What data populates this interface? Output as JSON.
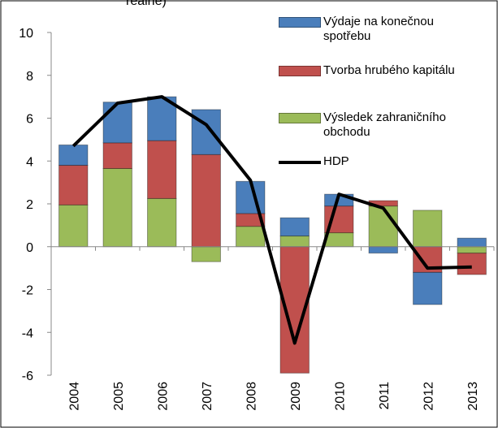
{
  "chart_data": {
    "type": "bar",
    "stacked": true,
    "title": "reálně)",
    "categories": [
      "2004",
      "2005",
      "2006",
      "2007",
      "2008",
      "2009",
      "2010",
      "2011",
      "2012",
      "2013"
    ],
    "series": [
      {
        "name": "Výdaje na konečnou spotřebu",
        "color": "#4a7ebb",
        "values": [
          0.95,
          1.9,
          2.05,
          2.1,
          1.5,
          0.85,
          0.55,
          -0.3,
          -1.5,
          0.4
        ]
      },
      {
        "name": "Tvorba hrubého kapitálu",
        "color": "#c0504d",
        "values": [
          1.85,
          1.2,
          2.7,
          4.3,
          0.6,
          -5.9,
          1.25,
          0.25,
          -1.2,
          -1.0
        ]
      },
      {
        "name": "Výsledek zahraničního obchodu",
        "color": "#9bbb59",
        "values": [
          1.95,
          3.65,
          2.25,
          -0.7,
          0.95,
          0.5,
          0.65,
          1.9,
          1.7,
          -0.3
        ]
      },
      {
        "name": "HDP",
        "color": "#000000",
        "type": "line",
        "values": [
          4.7,
          6.7,
          7.0,
          5.7,
          3.1,
          -4.5,
          2.45,
          1.8,
          -1.0,
          -0.95
        ]
      }
    ],
    "ylim": [
      -6,
      10
    ],
    "yticks": [
      -6,
      -4,
      -2,
      0,
      2,
      4,
      6,
      8,
      10
    ],
    "grid": false,
    "legend": "top-right"
  }
}
